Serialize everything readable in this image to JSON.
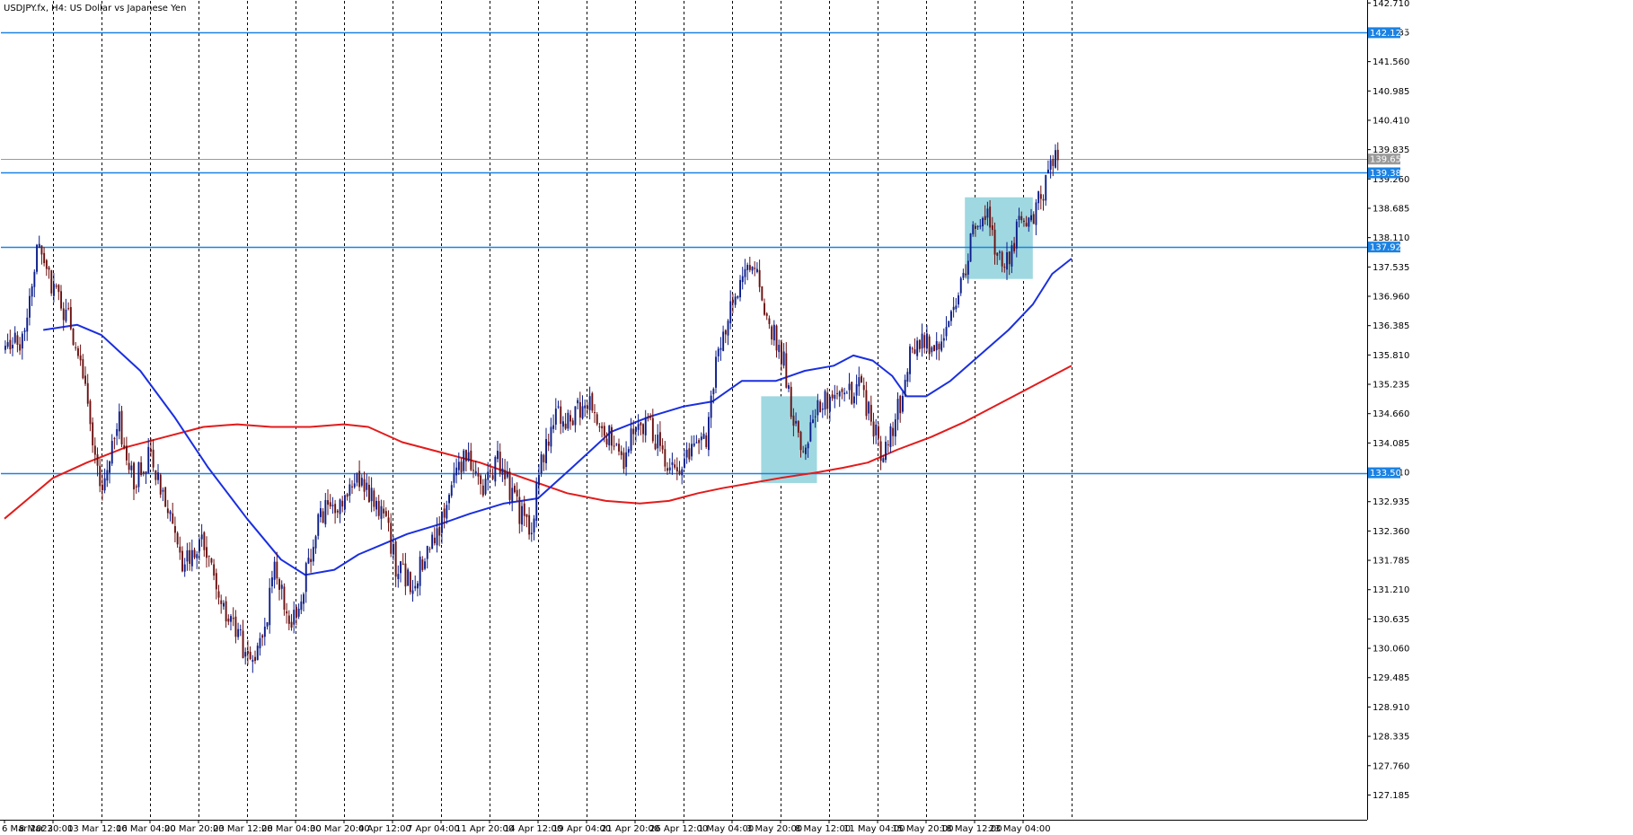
{
  "window": {
    "title": "USDJPY.fx, H4:  US Dollar vs Japanese Yen"
  },
  "colors": {
    "background": "#ffffff",
    "grid": "#000000",
    "candle_up": "#0b1d8a",
    "candle_down": "#6b1010",
    "ma_fast": "#1a2fe0",
    "ma_slow": "#e31b1b",
    "level": "#1b82e3",
    "zone": "#9fd8e0",
    "current_price": "#9a9a9a"
  },
  "chart_data": {
    "type": "candlestick",
    "symbol": "USDJPY.fx",
    "timeframe": "H4",
    "ylim": [
      126.7,
      142.75
    ],
    "y_ticks": [
      "142.710",
      "142.135",
      "141.560",
      "140.985",
      "140.410",
      "139.835",
      "139.260",
      "138.685",
      "138.110",
      "137.535",
      "136.960",
      "136.385",
      "135.810",
      "135.235",
      "134.660",
      "134.085",
      "133.510",
      "132.935",
      "132.360",
      "131.785",
      "131.210",
      "130.635",
      "130.060",
      "129.485",
      "128.910",
      "128.335",
      "127.760",
      "127.185"
    ],
    "x_ticks": [
      "6 Mar 2023",
      "8 Mar 20:00",
      "13 Mar 12:00",
      "16 Mar 04:00",
      "20 Mar 20:00",
      "23 Mar 12:00",
      "28 Mar 04:00",
      "30 Mar 20:00",
      "4 Apr 12:00",
      "7 Apr 04:00",
      "11 Apr 20:00",
      "14 Apr 12:00",
      "19 Apr 04:00",
      "21 Apr 20:00",
      "26 Apr 12:00",
      "1 May 04:00",
      "3 May 20:00",
      "8 May 12:00",
      "11 May 04:00",
      "15 May 20:00",
      "18 May 12:00",
      "23 May 04:00"
    ],
    "x_tick_index": [
      0,
      20,
      40,
      60,
      80,
      100,
      120,
      140,
      160,
      180,
      200,
      220,
      240,
      260,
      280,
      300,
      320,
      340,
      360,
      380,
      400,
      420
    ],
    "total_bars": 426,
    "grid": "vertical-dashed",
    "levels": [
      {
        "value": 142.127,
        "label": "142.127"
      },
      {
        "value": 139.38,
        "label": "139.380"
      },
      {
        "value": 137.926,
        "label": "137.926"
      },
      {
        "value": 133.501,
        "label": "133.501"
      }
    ],
    "current_price": {
      "value": 139.65,
      "label": "139.650"
    },
    "zones": [
      {
        "start_bar": 312,
        "end_bar": 335,
        "low": 133.3,
        "high": 135.0
      },
      {
        "start_bar": 396,
        "end_bar": 424,
        "low": 137.3,
        "high": 138.9
      }
    ],
    "path": [
      [
        0,
        135.9
      ],
      [
        8,
        136.1
      ],
      [
        14,
        137.9
      ],
      [
        20,
        137.2
      ],
      [
        28,
        136.4
      ],
      [
        34,
        135.0
      ],
      [
        40,
        133.2
      ],
      [
        48,
        134.5
      ],
      [
        54,
        133.3
      ],
      [
        60,
        133.8
      ],
      [
        66,
        133.1
      ],
      [
        74,
        131.6
      ],
      [
        82,
        132.2
      ],
      [
        90,
        131.0
      ],
      [
        98,
        130.2
      ],
      [
        102,
        129.8
      ],
      [
        108,
        130.5
      ],
      [
        112,
        131.7
      ],
      [
        118,
        130.6
      ],
      [
        122,
        130.9
      ],
      [
        128,
        132.2
      ],
      [
        134,
        133.0
      ],
      [
        140,
        132.8
      ],
      [
        146,
        133.3
      ],
      [
        152,
        133.1
      ],
      [
        158,
        132.5
      ],
      [
        162,
        131.7
      ],
      [
        168,
        131.3
      ],
      [
        174,
        131.8
      ],
      [
        180,
        132.4
      ],
      [
        186,
        133.6
      ],
      [
        192,
        133.9
      ],
      [
        198,
        133.3
      ],
      [
        204,
        133.7
      ],
      [
        208,
        133.3
      ],
      [
        214,
        132.6
      ],
      [
        218,
        132.5
      ],
      [
        222,
        133.8
      ],
      [
        228,
        134.6
      ],
      [
        234,
        134.4
      ],
      [
        240,
        135.0
      ],
      [
        246,
        134.6
      ],
      [
        252,
        134.0
      ],
      [
        256,
        133.7
      ],
      [
        262,
        134.6
      ],
      [
        268,
        134.3
      ],
      [
        274,
        133.6
      ],
      [
        280,
        133.7
      ],
      [
        286,
        134.0
      ],
      [
        290,
        134.2
      ],
      [
        294,
        135.6
      ],
      [
        298,
        136.4
      ],
      [
        302,
        137.1
      ],
      [
        306,
        137.4
      ],
      [
        310,
        137.6
      ],
      [
        314,
        136.8
      ],
      [
        318,
        136.2
      ],
      [
        322,
        135.7
      ],
      [
        326,
        134.5
      ],
      [
        330,
        133.9
      ],
      [
        332,
        134.3
      ],
      [
        336,
        134.8
      ],
      [
        342,
        135.1
      ],
      [
        348,
        135.0
      ],
      [
        354,
        135.2
      ],
      [
        358,
        134.5
      ],
      [
        362,
        133.9
      ],
      [
        366,
        134.3
      ],
      [
        370,
        134.9
      ],
      [
        374,
        135.9
      ],
      [
        380,
        136.1
      ],
      [
        386,
        135.9
      ],
      [
        390,
        136.6
      ],
      [
        396,
        137.3
      ],
      [
        400,
        138.3
      ],
      [
        406,
        138.6
      ],
      [
        412,
        137.4
      ],
      [
        416,
        137.9
      ],
      [
        420,
        138.5
      ],
      [
        424,
        138.4
      ],
      [
        428,
        138.9
      ],
      [
        432,
        139.6
      ],
      [
        434,
        139.65
      ]
    ],
    "ma_fast_path": [
      [
        16,
        136.3
      ],
      [
        30,
        136.4
      ],
      [
        40,
        136.2
      ],
      [
        56,
        135.5
      ],
      [
        70,
        134.6
      ],
      [
        84,
        133.6
      ],
      [
        100,
        132.6
      ],
      [
        114,
        131.8
      ],
      [
        124,
        131.5
      ],
      [
        136,
        131.6
      ],
      [
        146,
        131.9
      ],
      [
        156,
        132.1
      ],
      [
        166,
        132.3
      ],
      [
        180,
        132.5
      ],
      [
        192,
        132.7
      ],
      [
        206,
        132.9
      ],
      [
        220,
        133.0
      ],
      [
        234,
        133.6
      ],
      [
        250,
        134.3
      ],
      [
        266,
        134.6
      ],
      [
        280,
        134.8
      ],
      [
        292,
        134.9
      ],
      [
        304,
        135.3
      ],
      [
        318,
        135.3
      ],
      [
        330,
        135.5
      ],
      [
        342,
        135.6
      ],
      [
        350,
        135.8
      ],
      [
        358,
        135.7
      ],
      [
        366,
        135.4
      ],
      [
        372,
        135.0
      ],
      [
        380,
        135.0
      ],
      [
        390,
        135.3
      ],
      [
        402,
        135.8
      ],
      [
        414,
        136.3
      ],
      [
        424,
        136.8
      ],
      [
        432,
        137.4
      ],
      [
        440,
        137.7
      ]
    ],
    "ma_slow_path": [
      [
        0,
        132.6
      ],
      [
        10,
        133.0
      ],
      [
        20,
        133.4
      ],
      [
        34,
        133.7
      ],
      [
        50,
        134.0
      ],
      [
        66,
        134.2
      ],
      [
        82,
        134.4
      ],
      [
        96,
        134.45
      ],
      [
        110,
        134.4
      ],
      [
        126,
        134.4
      ],
      [
        140,
        134.45
      ],
      [
        150,
        134.4
      ],
      [
        164,
        134.1
      ],
      [
        180,
        133.9
      ],
      [
        196,
        133.7
      ],
      [
        214,
        133.4
      ],
      [
        232,
        133.1
      ],
      [
        248,
        132.95
      ],
      [
        262,
        132.9
      ],
      [
        274,
        132.95
      ],
      [
        286,
        133.1
      ],
      [
        296,
        133.2
      ],
      [
        308,
        133.3
      ],
      [
        320,
        133.4
      ],
      [
        334,
        133.5
      ],
      [
        346,
        133.6
      ],
      [
        356,
        133.7
      ],
      [
        368,
        133.95
      ],
      [
        382,
        134.2
      ],
      [
        396,
        134.5
      ],
      [
        408,
        134.8
      ],
      [
        420,
        135.1
      ],
      [
        432,
        135.4
      ],
      [
        440,
        135.6
      ]
    ]
  }
}
